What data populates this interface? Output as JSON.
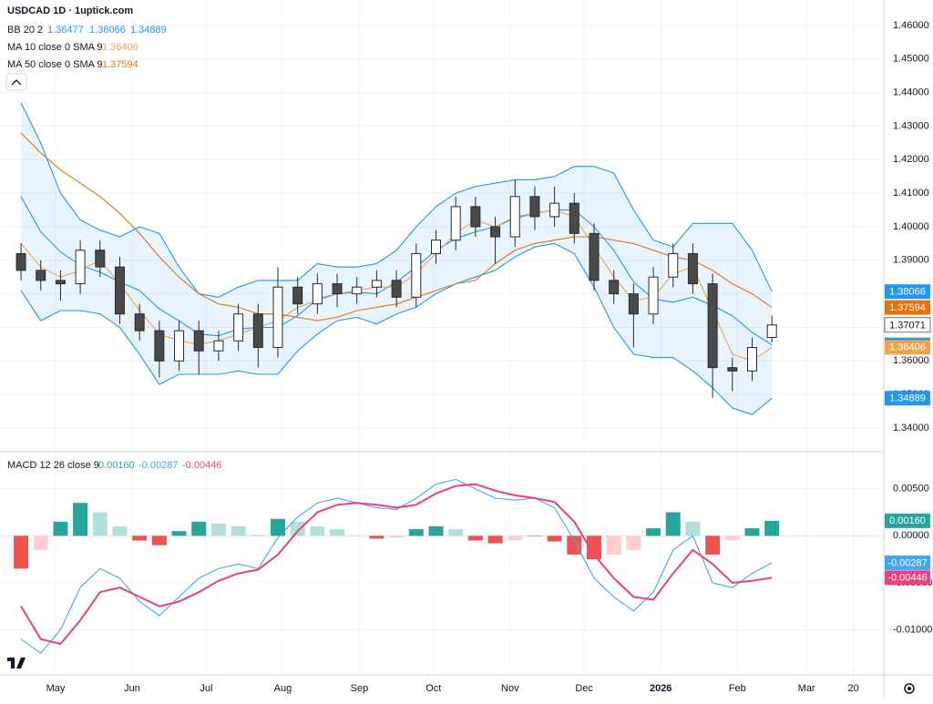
{
  "chart_data": [
    {
      "type": "candlestick",
      "title": "USDCAD 1D · 1uptick.com",
      "x": [
        3,
        11,
        19,
        27,
        35,
        43,
        51,
        59,
        67,
        75,
        83,
        91,
        99,
        107,
        115,
        123,
        131,
        139,
        147,
        155,
        163,
        171,
        179,
        187,
        195,
        203,
        211,
        219,
        227,
        235,
        243,
        251,
        259,
        267,
        275,
        283,
        291,
        299,
        307
      ],
      "open": [
        1.392,
        1.387,
        1.384,
        1.383,
        1.393,
        1.388,
        1.374,
        1.369,
        1.36,
        1.369,
        1.363,
        1.366,
        1.374,
        1.364,
        1.382,
        1.377,
        1.383,
        1.38,
        1.382,
        1.384,
        1.379,
        1.392,
        1.396,
        1.406,
        1.4,
        1.397,
        1.409,
        1.403,
        1.407,
        1.398,
        1.384,
        1.38,
        1.374,
        1.385,
        1.392,
        1.383,
        1.358,
        1.357,
        1.367
      ],
      "high": [
        1.395,
        1.39,
        1.387,
        1.396,
        1.396,
        1.391,
        1.377,
        1.372,
        1.372,
        1.372,
        1.369,
        1.377,
        1.377,
        1.388,
        1.385,
        1.386,
        1.386,
        1.385,
        1.387,
        1.387,
        1.395,
        1.399,
        1.409,
        1.409,
        1.403,
        1.414,
        1.412,
        1.412,
        1.41,
        1.401,
        1.387,
        1.383,
        1.388,
        1.395,
        1.395,
        1.386,
        1.361,
        1.367,
        1.3735
      ],
      "low": [
        1.384,
        1.381,
        1.378,
        1.38,
        1.385,
        1.371,
        1.366,
        1.355,
        1.357,
        1.356,
        1.36,
        1.363,
        1.358,
        1.361,
        1.374,
        1.374,
        1.376,
        1.377,
        1.379,
        1.376,
        1.376,
        1.389,
        1.393,
        1.397,
        1.389,
        1.394,
        1.399,
        1.4,
        1.395,
        1.381,
        1.377,
        1.364,
        1.371,
        1.382,
        1.38,
        1.349,
        1.351,
        1.354,
        1.3655
      ],
      "close": [
        1.387,
        1.384,
        1.383,
        1.393,
        1.388,
        1.374,
        1.369,
        1.36,
        1.369,
        1.363,
        1.366,
        1.374,
        1.364,
        1.382,
        1.377,
        1.383,
        1.38,
        1.382,
        1.384,
        1.379,
        1.392,
        1.396,
        1.406,
        1.4,
        1.397,
        1.409,
        1.403,
        1.407,
        1.398,
        1.384,
        1.38,
        1.374,
        1.385,
        1.392,
        1.383,
        1.358,
        1.357,
        1.364,
        1.37071
      ],
      "up_color": "#ffffff",
      "down_color": "#4a4a4a",
      "edge_color": "#2a2a2a",
      "xlim": [
        -5.5,
        352.3
      ],
      "xticks": [
        {
          "value": 17,
          "label": "May"
        },
        {
          "value": 48,
          "label": "Jun"
        },
        {
          "value": 78,
          "label": "Jul"
        },
        {
          "value": 109,
          "label": "Aug"
        },
        {
          "value": 140,
          "label": "Sep"
        },
        {
          "value": 170,
          "label": "Oct"
        },
        {
          "value": 201,
          "label": "Nov"
        },
        {
          "value": 231,
          "label": "Dec"
        },
        {
          "value": 262,
          "label": "2026"
        },
        {
          "value": 293,
          "label": "Feb"
        },
        {
          "value": 321,
          "label": "Mar"
        },
        {
          "value": 340,
          "label": "20"
        }
      ],
      "ylim": [
        1.3332,
        1.4676
      ],
      "yticks": [
        {
          "value": 1.34,
          "label": "1.34000"
        },
        {
          "value": 1.35,
          "label": "1.35000"
        },
        {
          "value": 1.36,
          "label": "1.36000"
        },
        {
          "value": 1.37,
          "label": "1.37000"
        },
        {
          "value": 1.38,
          "label": "1.38000"
        },
        {
          "value": 1.39,
          "label": "1.39000"
        },
        {
          "value": 1.4,
          "label": "1.40000"
        },
        {
          "value": 1.41,
          "label": "1.41000"
        },
        {
          "value": 1.42,
          "label": "1.42000"
        },
        {
          "value": 1.43,
          "label": "1.43000"
        },
        {
          "value": 1.44,
          "label": "1.44000"
        },
        {
          "value": 1.45,
          "label": "1.45000"
        },
        {
          "value": 1.46,
          "label": "1.46000"
        }
      ],
      "grid": true,
      "indicators": [
        {
          "name": "BB 20 2",
          "color": "#2196f3",
          "fill": "rgba(33,150,243,0.10)",
          "lines": [
            {
              "values": [
                1.409,
                1.3985,
                1.3925,
                1.3885,
                1.3865,
                1.3835,
                1.381,
                1.3755,
                1.372,
                1.368,
                1.3675,
                1.3695,
                1.37,
                1.37,
                1.3735,
                1.3785,
                1.38,
                1.3805,
                1.38,
                1.3835,
                1.388,
                1.393,
                1.3965,
                1.3985,
                1.4,
                1.4025,
                1.404,
                1.405,
                1.405,
                1.4,
                1.393,
                1.3835,
                1.3785,
                1.3775,
                1.379,
                1.3765,
                1.3735,
                1.3685,
                1.36477
              ]
            },
            {
              "values": [
                1.437,
                1.425,
                1.41,
                1.402,
                1.399,
                1.397,
                1.4,
                1.398,
                1.388,
                1.38,
                1.379,
                1.382,
                1.384,
                1.384,
                1.384,
                1.389,
                1.388,
                1.388,
                1.389,
                1.393,
                1.4,
                1.406,
                1.41,
                1.412,
                1.413,
                1.414,
                1.414,
                1.415,
                1.418,
                1.418,
                1.416,
                1.405,
                1.396,
                1.394,
                1.401,
                1.401,
                1.401,
                1.393,
                1.38066
              ]
            },
            {
              "values": [
                1.381,
                1.372,
                1.375,
                1.375,
                1.374,
                1.37,
                1.362,
                1.353,
                1.356,
                1.356,
                1.356,
                1.357,
                1.356,
                1.356,
                1.363,
                1.368,
                1.372,
                1.373,
                1.371,
                1.374,
                1.376,
                1.38,
                1.383,
                1.385,
                1.387,
                1.391,
                1.394,
                1.395,
                1.392,
                1.382,
                1.37,
                1.362,
                1.361,
                1.361,
                1.357,
                1.352,
                1.346,
                1.344,
                1.34889
              ]
            }
          ]
        },
        {
          "name": "MA 10 close 0 SMA 9",
          "color": "#f2a24a",
          "lines": [
            {
              "values": [
                1.395,
                1.388,
                1.385,
                1.387,
                1.39,
                1.383,
                1.375,
                1.368,
                1.366,
                1.365,
                1.366,
                1.368,
                1.37,
                1.372,
                1.376,
                1.378,
                1.38,
                1.381,
                1.382,
                1.382,
                1.386,
                1.392,
                1.398,
                1.402,
                1.4,
                1.403,
                1.404,
                1.405,
                1.403,
                1.394,
                1.385,
                1.378,
                1.379,
                1.386,
                1.388,
                1.375,
                1.362,
                1.36,
                1.36406
              ]
            }
          ]
        },
        {
          "name": "MA 50 close 0 SMA 9",
          "color": "#e8710a",
          "lines": [
            {
              "values": [
                1.428,
                1.422,
                1.417,
                1.413,
                1.409,
                1.404,
                1.398,
                1.391,
                1.385,
                1.38,
                1.377,
                1.376,
                1.374,
                1.374,
                1.373,
                1.372,
                1.373,
                1.375,
                1.376,
                1.377,
                1.379,
                1.381,
                1.383,
                1.384,
                1.389,
                1.393,
                1.395,
                1.396,
                1.397,
                1.397,
                1.396,
                1.395,
                1.393,
                1.391,
                1.39,
                1.387,
                1.383,
                1.38,
                1.37594
              ]
            }
          ]
        }
      ]
    },
    {
      "type": "macd",
      "title": "MACD 12 26 close 9",
      "ylim": [
        -0.0147,
        0.00885
      ],
      "yticks": [
        {
          "value": 0.005,
          "label": "0.00500"
        },
        {
          "value": 0,
          "label": "0.00000"
        },
        {
          "value": -0.005,
          "label": "-0.00500"
        },
        {
          "value": -0.01,
          "label": "-0.01000"
        }
      ],
      "histogram": {
        "colors": [
          "#26a69a",
          "#b2dfdb",
          "#ffcdd2",
          "#ef5350"
        ],
        "values": [
          -0.0035,
          -0.0015,
          0.0015,
          0.0035,
          0.0025,
          0.001,
          -0.0005,
          -0.001,
          0.0005,
          0.0015,
          0.0013,
          0.001,
          0.0001,
          0.0018,
          0.0015,
          0.001,
          0.0007,
          0.0,
          -0.0003,
          -0.0002,
          0.0007,
          0.001,
          0.0007,
          -0.0005,
          -0.0008,
          -0.0005,
          0.0,
          -0.0006,
          -0.002,
          -0.0025,
          -0.002,
          -0.0015,
          0.0008,
          0.0025,
          0.0015,
          -0.002,
          -0.0005,
          0.0008,
          0.0016
        ],
        "value_labels": [
          null,
          null,
          null,
          null,
          null,
          null,
          null,
          null,
          null,
          null,
          null,
          null,
          null,
          null,
          null,
          null,
          null,
          null,
          null,
          null,
          null,
          null,
          null,
          null,
          null,
          null,
          null,
          null,
          null,
          null,
          null,
          null,
          null,
          null,
          null,
          null,
          null,
          null,
          "0.00160"
        ]
      },
      "series": [
        {
          "color": "#42a5f5",
          "values": [
            -0.011,
            -0.0125,
            -0.01,
            -0.0055,
            -0.0035,
            -0.0045,
            -0.007,
            -0.0085,
            -0.0065,
            -0.0045,
            -0.0035,
            -0.003,
            -0.0035,
            -0.0002,
            0.002,
            0.0035,
            0.004,
            0.0035,
            0.003,
            0.0028,
            0.004,
            0.0055,
            0.006,
            0.005,
            0.004,
            0.0038,
            0.004,
            0.003,
            -0.0005,
            -0.0045,
            -0.0065,
            -0.008,
            -0.006,
            -0.0015,
            0.0,
            -0.005,
            -0.0055,
            -0.004,
            -0.00287
          ],
          "value_labels": [
            null,
            null,
            null,
            null,
            null,
            null,
            null,
            null,
            null,
            null,
            null,
            null,
            null,
            null,
            null,
            null,
            null,
            null,
            null,
            null,
            null,
            null,
            null,
            null,
            null,
            null,
            null,
            null,
            null,
            null,
            null,
            null,
            null,
            null,
            null,
            null,
            null,
            null,
            "-0.00287"
          ]
        },
        {
          "color": "#ec407a",
          "values": [
            -0.0075,
            -0.011,
            -0.0115,
            -0.009,
            -0.006,
            -0.0055,
            -0.0065,
            -0.0075,
            -0.007,
            -0.006,
            -0.0048,
            -0.004,
            -0.0036,
            -0.002,
            0.0005,
            0.0025,
            0.0033,
            0.0035,
            0.0033,
            0.003,
            0.0033,
            0.0045,
            0.0053,
            0.0055,
            0.0048,
            0.0043,
            0.004,
            0.0036,
            0.0015,
            -0.002,
            -0.0045,
            -0.0065,
            -0.0068,
            -0.004,
            -0.0015,
            -0.003,
            -0.005,
            -0.0048,
            -0.00446
          ],
          "value_labels": [
            null,
            null,
            null,
            null,
            null,
            null,
            null,
            null,
            null,
            null,
            null,
            null,
            null,
            null,
            null,
            null,
            null,
            null,
            null,
            null,
            null,
            null,
            null,
            null,
            null,
            null,
            null,
            null,
            null,
            null,
            null,
            null,
            null,
            null,
            null,
            null,
            null,
            null,
            "-0.00446"
          ]
        }
      ],
      "grid": true
    }
  ]
}
